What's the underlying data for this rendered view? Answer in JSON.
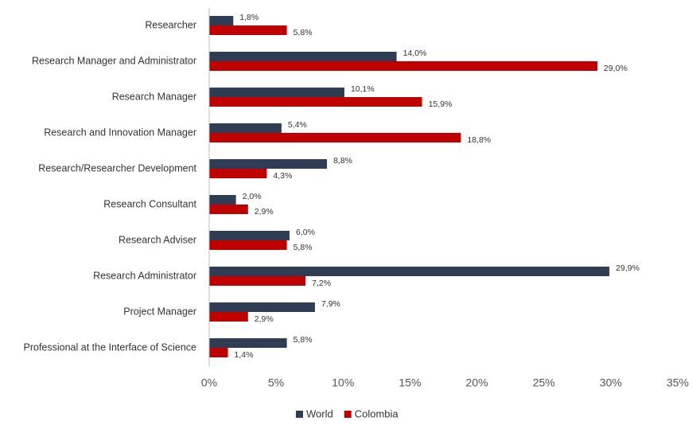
{
  "chart_data": {
    "type": "hbar",
    "categories": [
      "Researcher",
      "Research Manager and Administrator",
      "Research Manager",
      "Research and Innovation Manager",
      "Research/Researcher Development",
      "Research Consultant",
      "Research Adviser",
      "Research Administrator",
      "Project Manager",
      "Professional at the Interface of Science"
    ],
    "series": [
      {
        "name": "World",
        "color": "#2e3c54",
        "values": [
          1.8,
          14.0,
          10.1,
          5.4,
          8.8,
          2.0,
          6.0,
          29.9,
          7.9,
          5.8
        ],
        "value_labels": [
          "1,8%",
          "14,0%",
          "10,1%",
          "5,4%",
          "8,8%",
          "2,0%",
          "6,0%",
          "29,9%",
          "7,9%",
          "5,8%"
        ]
      },
      {
        "name": "Colombia",
        "color": "#c00000",
        "values": [
          5.8,
          29.0,
          15.9,
          18.8,
          4.3,
          2.9,
          5.8,
          7.2,
          2.9,
          1.4
        ],
        "value_labels": [
          "5,8%",
          "29,0%",
          "15,9%",
          "18,8%",
          "4,3%",
          "2,9%",
          "5,8%",
          "7,2%",
          "2,9%",
          "1,4%"
        ]
      }
    ],
    "xlim": [
      0,
      35
    ],
    "xticks": [
      {
        "value": 0,
        "label": "0%"
      },
      {
        "value": 5,
        "label": "5%"
      },
      {
        "value": 10,
        "label": "10%"
      },
      {
        "value": 15,
        "label": "15%"
      },
      {
        "value": 20,
        "label": "20%"
      },
      {
        "value": 25,
        "label": "25%"
      },
      {
        "value": 30,
        "label": "30%"
      },
      {
        "value": 35,
        "label": "35%"
      }
    ],
    "grid": false,
    "legend": "bottom"
  }
}
